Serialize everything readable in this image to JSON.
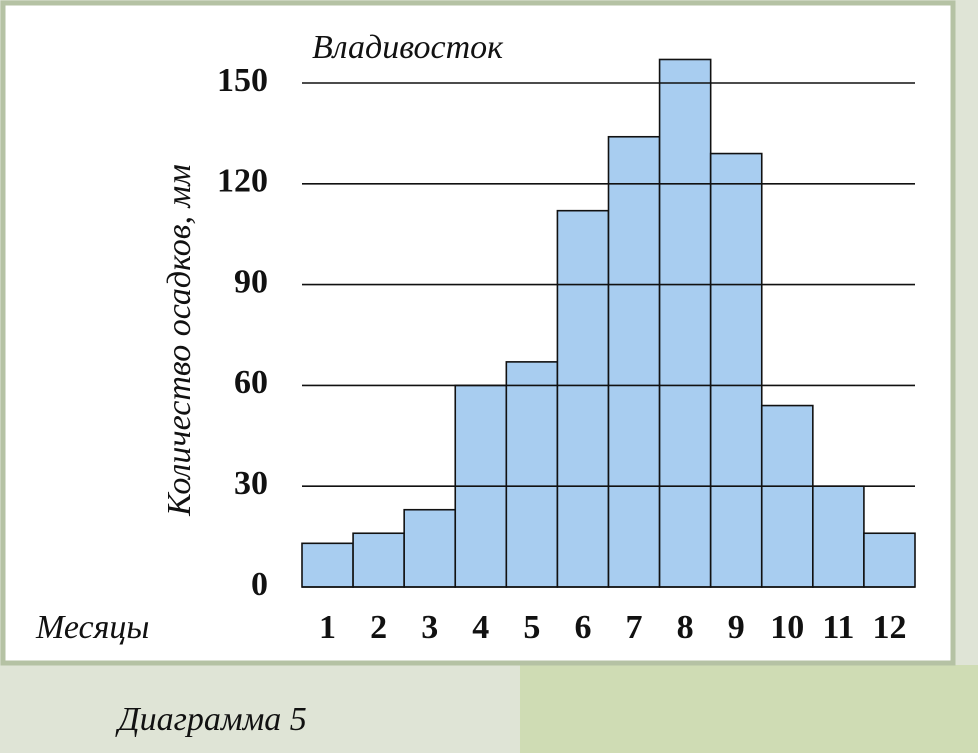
{
  "chart_data": {
    "type": "bar",
    "title": "Владивосток",
    "y_label": "Количество осадков, мм",
    "x_label": "Месяцы",
    "caption": "Диаграмма 5",
    "categories": [
      "1",
      "2",
      "3",
      "4",
      "5",
      "6",
      "7",
      "8",
      "9",
      "10",
      "11",
      "12"
    ],
    "values": [
      13,
      16,
      23,
      60,
      67,
      112,
      134,
      157,
      129,
      54,
      30,
      16
    ],
    "color": "#a8cdf0",
    "ylim": [
      0,
      160
    ],
    "yticks": [
      0,
      30,
      60,
      90,
      120,
      150
    ],
    "grid": true
  }
}
